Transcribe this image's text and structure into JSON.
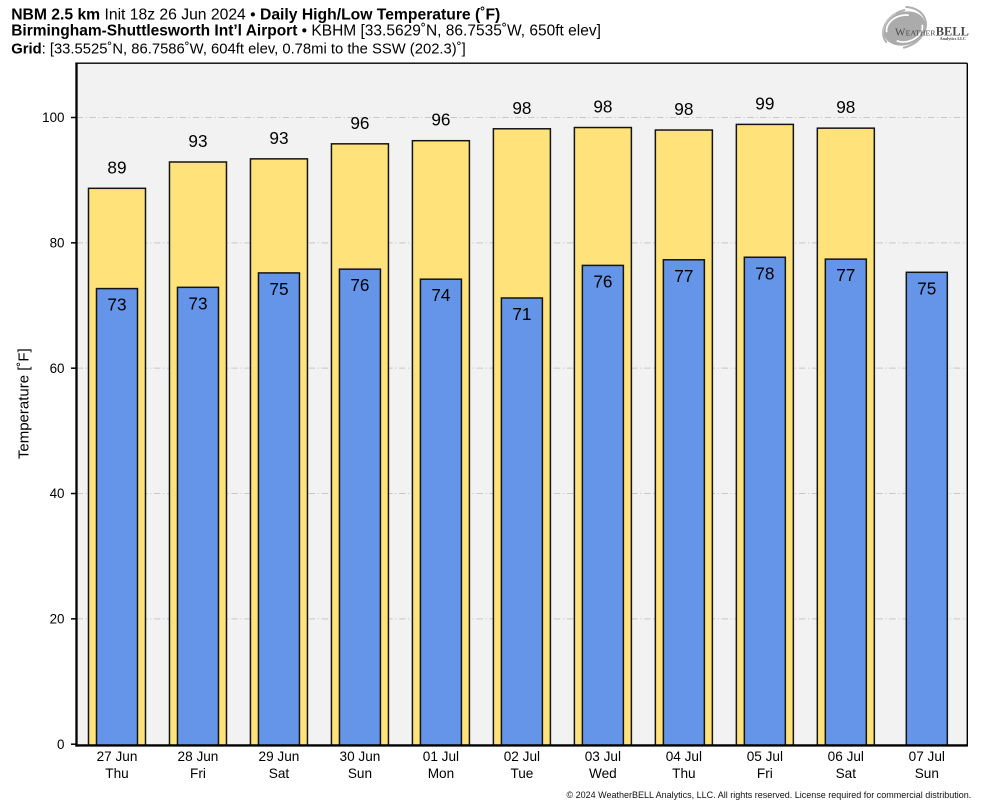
{
  "header": {
    "line1": {
      "segments": [
        {
          "text": "NBM 2.5 km",
          "bold": true
        },
        {
          "text": " Init 18z 26 Jun 2024 ",
          "bold": false
        },
        {
          "text": "• ",
          "bold": false
        },
        {
          "text": "Daily High/Low Temperature (˚F)",
          "bold": true
        }
      ]
    },
    "line2": {
      "segments": [
        {
          "text": "Birmingham-Shuttlesworth Int’l Airport",
          "bold": true
        },
        {
          "text": " • KBHM [33.5629˚N, 86.7535˚W, 650ft elev]",
          "bold": false
        }
      ]
    },
    "line3": {
      "segments": [
        {
          "text": "Grid",
          "bold": true
        },
        {
          "text": ": [33.5525˚N, 86.7586˚W, 604ft elev, 0.78mi to the SSW (202.3)˚]",
          "bold": false
        }
      ]
    }
  },
  "logo": {
    "brand_w": "W",
    "brand_small_caps": "EATHER",
    "brand_caps": "BELL",
    "subtitle": "Analytics LLC"
  },
  "chart_data": {
    "type": "bar",
    "title": "Daily High/Low Temperature (˚F)",
    "xlabel": "",
    "ylabel": "Temperature [˚F]",
    "ylim": [
      0,
      108.7
    ],
    "yticks": [
      0,
      20,
      40,
      60,
      80,
      100
    ],
    "grid": "horizontal dash-dot gridlines at yticks above 0",
    "legend": "none",
    "categories": [
      {
        "date": "27 Jun",
        "day": "Thu"
      },
      {
        "date": "28 Jun",
        "day": "Fri"
      },
      {
        "date": "29 Jun",
        "day": "Sat"
      },
      {
        "date": "30 Jun",
        "day": "Sun"
      },
      {
        "date": "01 Jul",
        "day": "Mon"
      },
      {
        "date": "02 Jul",
        "day": "Tue"
      },
      {
        "date": "03 Jul",
        "day": "Wed"
      },
      {
        "date": "04 Jul",
        "day": "Thu"
      },
      {
        "date": "05 Jul",
        "day": "Fri"
      },
      {
        "date": "06 Jul",
        "day": "Sat"
      },
      {
        "date": "07 Jul",
        "day": "Sun"
      }
    ],
    "series": [
      {
        "name": "High",
        "color": "#FFE37A",
        "values": [
          88.7,
          92.9,
          93.4,
          95.8,
          96.3,
          98.2,
          98.4,
          98.0,
          98.9,
          98.3,
          null
        ],
        "labels": [
          "89",
          "93",
          "93",
          "96",
          "96",
          "98",
          "98",
          "98",
          "99",
          "98",
          null
        ]
      },
      {
        "name": "Low",
        "color": "#6495E8",
        "values": [
          72.7,
          72.9,
          75.2,
          75.8,
          74.2,
          71.2,
          76.4,
          77.3,
          77.7,
          77.4,
          75.3
        ],
        "labels": [
          "73",
          "73",
          "75",
          "76",
          "74",
          "71",
          "76",
          "77",
          "78",
          "77",
          "75"
        ]
      }
    ]
  },
  "footer": {
    "copyright": "© 2024 WeatherBELL Analytics, LLC. All rights reserved. License required for commercial distribution."
  },
  "colors": {
    "high_bar_fill": "#FFE37A",
    "low_bar_fill": "#6495E8",
    "bar_stroke": "#141414",
    "plot_background": "#f2f2f2",
    "gridline": "#c8c8c8",
    "axis": "#000000",
    "text": "#000000"
  }
}
